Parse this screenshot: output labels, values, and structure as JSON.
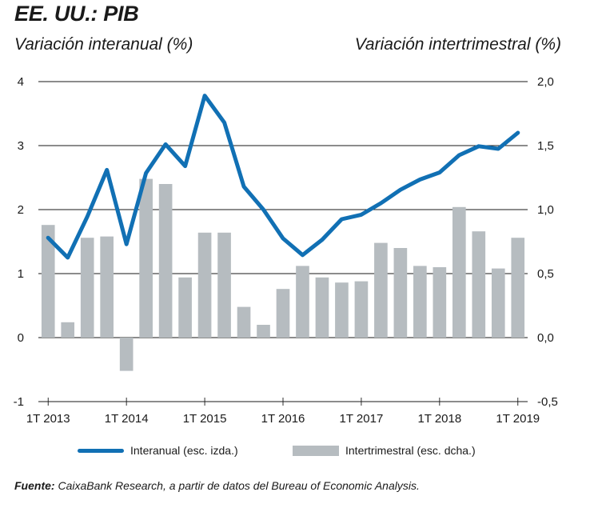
{
  "header": {
    "title": "EE. UU.: PIB",
    "left_axis_label": "Variación interanual (%)",
    "right_axis_label": "Variación intertrimestral (%)"
  },
  "legend": {
    "line_label": "Interanual (esc. izda.)",
    "bar_label": "Intertrimestral (esc. dcha.)"
  },
  "source": {
    "label": "Fuente:",
    "text": " CaixaBank Research, a partir de datos del Bureau of Economic Analysis."
  },
  "colors": {
    "line": "#1170b4",
    "bars": "#b6bcc0",
    "grid": "#1a1a1a"
  },
  "chart_data": {
    "type": "bar+line",
    "categories": [
      "1T 2013",
      "2T 2013",
      "3T 2013",
      "4T 2013",
      "1T 2014",
      "2T 2014",
      "3T 2014",
      "4T 2014",
      "1T 2015",
      "2T 2015",
      "3T 2015",
      "4T 2015",
      "1T 2016",
      "2T 2016",
      "3T 2016",
      "4T 2016",
      "1T 2017",
      "2T 2017",
      "3T 2017",
      "4T 2017",
      "1T 2018",
      "2T 2018",
      "3T 2018",
      "4T 2018",
      "1T 2019"
    ],
    "x_tick_labels": [
      "1T 2013",
      "1T 2014",
      "1T 2015",
      "1T 2016",
      "1T 2017",
      "1T 2018",
      "1T 2019"
    ],
    "x_tick_every": 4,
    "series": [
      {
        "name": "Interanual (esc. izda.)",
        "type": "line",
        "axis": "left",
        "values": [
          1.56,
          1.25,
          1.89,
          2.62,
          1.46,
          2.57,
          3.02,
          2.68,
          3.78,
          3.36,
          2.36,
          2.0,
          1.55,
          1.29,
          1.53,
          1.85,
          1.92,
          2.1,
          2.31,
          2.47,
          2.58,
          2.85,
          2.99,
          2.95,
          3.2
        ]
      },
      {
        "name": "Intertrimestral (esc. dcha.)",
        "type": "bar",
        "axis": "right",
        "values": [
          0.88,
          0.12,
          0.78,
          0.79,
          -0.26,
          1.24,
          1.2,
          0.47,
          0.82,
          0.82,
          0.24,
          0.1,
          0.38,
          0.56,
          0.47,
          0.43,
          0.44,
          0.74,
          0.7,
          0.56,
          0.55,
          1.02,
          0.83,
          0.54,
          0.78
        ]
      }
    ],
    "ylim_left": [
      -1,
      4
    ],
    "yticks_left": [
      "-1",
      "0",
      "1",
      "2",
      "3",
      "4"
    ],
    "ylim_right": [
      -0.5,
      2.0
    ],
    "yticks_right": [
      "-0,5",
      "0,0",
      "0,5",
      "1,0",
      "1,5",
      "2,0"
    ],
    "grid": true
  }
}
